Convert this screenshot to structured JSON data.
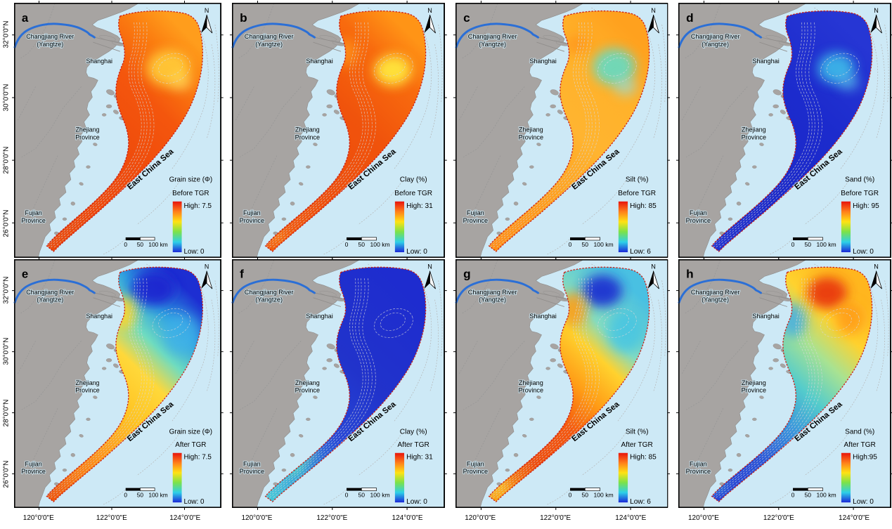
{
  "figure": {
    "shared": {
      "river_label_line1": "Changjiang River",
      "river_label_line2": "(Yangtze)",
      "city_label": "Shanghai",
      "province1_line1": "Zhejiang",
      "province1_line2": "Province",
      "province2_line1": "Fujian",
      "province2_line2": "Province",
      "sea_label": "East China Sea",
      "north_label": "N",
      "scale_labels": [
        "0",
        "50",
        "100 km"
      ],
      "lat_labels": [
        "32°0'0\"N",
        "30°0'0\"N",
        "28°0'0\"N",
        "26°0'0\"N"
      ],
      "lon_labels": [
        "120°0'0\"E",
        "122°0'0\"E",
        "124°0'0\"E"
      ],
      "colors": {
        "sea": "#cde9f6",
        "land": "#a7a4a2",
        "land_edge": "#8f8c8a",
        "sea_contour": "#b5b5b5",
        "belt_contour": "#d8d8d8",
        "province_line": "#929292",
        "river": "#2b6fd6",
        "belt_border": "#cc2016",
        "colorbar": [
          "#e8140c",
          "#ff7f1a",
          "#ffe214",
          "#7be24a",
          "#2ed0e8",
          "#1a28d8"
        ]
      }
    },
    "panels": [
      {
        "id": "a",
        "row": 0,
        "col": 0,
        "legend_title": "Grain size (Φ)",
        "legend_period": "Before TGR",
        "high_label": "High: 7.5",
        "low_label": "Low: 0",
        "belt_stops": [
          [
            0,
            "#ff9d1c"
          ],
          [
            0.12,
            "#fb7d10"
          ],
          [
            0.3,
            "#f4560d"
          ],
          [
            0.55,
            "#ef4b0c"
          ],
          [
            0.8,
            "#ed470b"
          ],
          [
            1,
            "#e94a0c"
          ]
        ],
        "patches": [
          [
            222,
            92,
            32,
            26,
            "#ffd23e",
            0.85
          ],
          [
            240,
            112,
            16,
            12,
            "#ffe76a",
            0.55
          ]
        ]
      },
      {
        "id": "b",
        "row": 0,
        "col": 1,
        "legend_title": "Clay (%)",
        "legend_period": "Before TGR",
        "high_label": "High: 31",
        "low_label": "Low: 0",
        "belt_stops": [
          [
            0,
            "#ff9416"
          ],
          [
            0.15,
            "#f86b0e"
          ],
          [
            0.4,
            "#f0530c"
          ],
          [
            0.7,
            "#ee4d0b"
          ],
          [
            1,
            "#f25c0e"
          ]
        ],
        "patches": [
          [
            225,
            95,
            26,
            22,
            "#ffe63e",
            0.95
          ],
          [
            160,
            70,
            15,
            20,
            "#ff9a1a",
            0.7
          ],
          [
            62,
            330,
            12,
            9,
            "#ff9a1a",
            0.6
          ]
        ]
      },
      {
        "id": "c",
        "row": 0,
        "col": 2,
        "legend_title": "Silt (%)",
        "legend_period": "Before TGR",
        "high_label": "High: 85",
        "low_label": "Low: 6",
        "belt_stops": [
          [
            0,
            "#ffa11e"
          ],
          [
            0.2,
            "#ffb22a"
          ],
          [
            0.45,
            "#ffb430"
          ],
          [
            0.7,
            "#ffa01e"
          ],
          [
            1,
            "#ff8e16"
          ]
        ],
        "patches": [
          [
            222,
            90,
            30,
            26,
            "#63dcc6",
            0.9
          ],
          [
            238,
            118,
            16,
            13,
            "#8fe0e8",
            0.6
          ],
          [
            170,
            58,
            18,
            14,
            "#ff8c12",
            0.6
          ]
        ]
      },
      {
        "id": "d",
        "row": 0,
        "col": 3,
        "legend_title": "Sand (%)",
        "legend_period": "Before TGR",
        "high_label": "High: 95",
        "low_label": "Low: 0",
        "belt_stops": [
          [
            0,
            "#2636d4"
          ],
          [
            0.35,
            "#1c2bcd"
          ],
          [
            0.7,
            "#1b29c9"
          ],
          [
            1,
            "#2132cf"
          ]
        ],
        "patches": [
          [
            221,
            92,
            26,
            22,
            "#40c4ea",
            0.85
          ],
          [
            238,
            112,
            15,
            11,
            "#63d4ee",
            0.6
          ]
        ]
      },
      {
        "id": "e",
        "row": 1,
        "col": 0,
        "legend_title": "Grain size (Φ)",
        "legend_period": "After TGR",
        "high_label": "High: 7.5",
        "low_label": "Low: 0",
        "belt_stops": [
          [
            0,
            "#1d2ed2"
          ],
          [
            0.14,
            "#2f9fe0"
          ],
          [
            0.26,
            "#6fdcc0"
          ],
          [
            0.38,
            "#ffd83a"
          ],
          [
            0.55,
            "#ffc322"
          ],
          [
            0.72,
            "#ff9c1a"
          ],
          [
            0.88,
            "#f97a12"
          ],
          [
            1,
            "#ef5a0e"
          ]
        ],
        "patches": [
          [
            200,
            42,
            32,
            25,
            "#1b24cf",
            0.9
          ],
          [
            240,
            108,
            26,
            30,
            "#3fb2e8",
            0.8
          ],
          [
            158,
            78,
            17,
            25,
            "#ffd42a",
            0.9
          ],
          [
            80,
            272,
            23,
            17,
            "#e23c0f",
            0.9
          ],
          [
            100,
            250,
            15,
            11,
            "#ff7712",
            0.55
          ]
        ]
      },
      {
        "id": "f",
        "row": 1,
        "col": 1,
        "legend_title": "Clay (%)",
        "legend_period": "After TGR",
        "high_label": "High: 31",
        "low_label": "Low: 0",
        "belt_stops": [
          [
            0,
            "#1e2ccf"
          ],
          [
            0.4,
            "#2133cb"
          ],
          [
            0.65,
            "#2746d6"
          ],
          [
            0.82,
            "#2f86dd"
          ],
          [
            1,
            "#42c4d8"
          ]
        ],
        "patches": [
          [
            82,
            300,
            21,
            15,
            "#4fd6c8",
            0.9
          ],
          [
            102,
            282,
            13,
            10,
            "#7ddcae",
            0.7
          ],
          [
            60,
            322,
            13,
            9,
            "#52c8e0",
            0.8
          ]
        ]
      },
      {
        "id": "g",
        "row": 1,
        "col": 2,
        "legend_title": "Silt (%)",
        "legend_period": "After TGR",
        "high_label": "High: 85",
        "low_label": "Low: 6",
        "belt_stops": [
          [
            0,
            "#49c0e2"
          ],
          [
            0.2,
            "#84dcc0"
          ],
          [
            0.3,
            "#ffd22e"
          ],
          [
            0.45,
            "#ff9c16"
          ],
          [
            0.6,
            "#f4570e"
          ],
          [
            0.8,
            "#ee4b0c"
          ],
          [
            1,
            "#f9a018"
          ]
        ],
        "patches": [
          [
            205,
            45,
            28,
            23,
            "#1f2ed0",
            0.92
          ],
          [
            238,
            105,
            25,
            30,
            "#45c4e4",
            0.8
          ],
          [
            165,
            72,
            19,
            25,
            "#ff9c16",
            0.85
          ],
          [
            60,
            330,
            13,
            9,
            "#ffd42a",
            0.8
          ]
        ]
      },
      {
        "id": "h",
        "row": 1,
        "col": 3,
        "legend_title": "Sand (%)",
        "legend_period": "After TGR",
        "high_label": "High:95",
        "low_label": "Low: 0",
        "belt_stops": [
          [
            0,
            "#ffb61e"
          ],
          [
            0.16,
            "#ffd22e"
          ],
          [
            0.3,
            "#a8e292"
          ],
          [
            0.45,
            "#54cccc"
          ],
          [
            0.6,
            "#3a96dc"
          ],
          [
            0.78,
            "#2a55d8"
          ],
          [
            1,
            "#2740d4"
          ]
        ],
        "patches": [
          [
            208,
            48,
            28,
            23,
            "#e8330c",
            0.9
          ],
          [
            240,
            85,
            20,
            24,
            "#ff9218",
            0.7
          ],
          [
            160,
            88,
            19,
            25,
            "#45aee4",
            0.85
          ],
          [
            80,
            278,
            23,
            17,
            "#1a28ce",
            0.8
          ],
          [
            55,
            330,
            13,
            9,
            "#2f9fe0",
            0.7
          ]
        ]
      }
    ]
  }
}
